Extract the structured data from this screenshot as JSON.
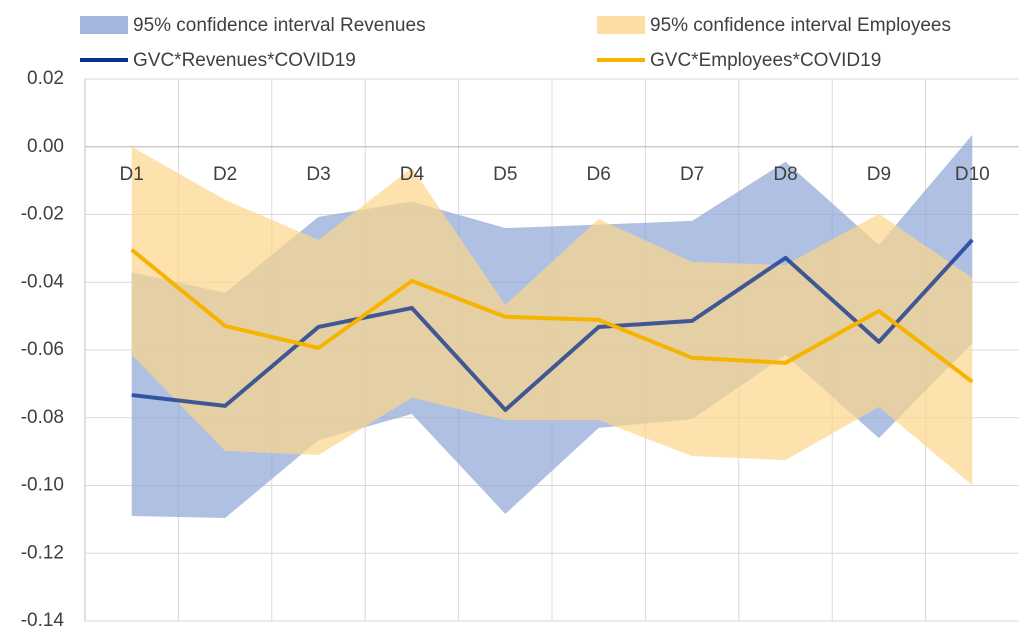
{
  "chart_data": {
    "type": "band-line",
    "categories": [
      "D1",
      "D2",
      "D3",
      "D4",
      "D5",
      "D6",
      "D7",
      "D8",
      "D9",
      "D10"
    ],
    "bands": [
      {
        "name": "95% confidence interval Revenues",
        "color": "#8fa5d6",
        "upper": [
          -0.037,
          -0.0431,
          -0.0207,
          -0.0162,
          -0.024,
          -0.023,
          -0.0219,
          -0.0044,
          -0.029,
          0.0035
        ],
        "lower": [
          -0.109,
          -0.1096,
          -0.0866,
          -0.0789,
          -0.1084,
          -0.083,
          -0.0804,
          -0.0615,
          -0.086,
          -0.058
        ]
      },
      {
        "name": "95% confidence interval Employees",
        "color": "#fcd58a",
        "upper": [
          0.0,
          -0.0157,
          -0.0275,
          -0.0062,
          -0.0467,
          -0.0213,
          -0.034,
          -0.0349,
          -0.0198,
          -0.0387
        ],
        "lower": [
          -0.0614,
          -0.0898,
          -0.091,
          -0.0741,
          -0.0807,
          -0.0807,
          -0.0913,
          -0.0925,
          -0.0768,
          -0.0999
        ]
      }
    ],
    "series": [
      {
        "name": "GVC*Revenues*COVID19",
        "color": "#0a2f8f",
        "values": [
          -0.0733,
          -0.0765,
          -0.0532,
          -0.0476,
          -0.0777,
          -0.0532,
          -0.0514,
          -0.0328,
          -0.0576,
          -0.0275
        ]
      },
      {
        "name": "GVC*Employees*COVID19",
        "color": "#f5b400",
        "values": [
          -0.0304,
          -0.0529,
          -0.0594,
          -0.0396,
          -0.0502,
          -0.0511,
          -0.0623,
          -0.0638,
          -0.0485,
          -0.0694
        ]
      }
    ],
    "ylim": [
      -0.14,
      0.02
    ],
    "yticks": [
      0.02,
      {
        "value": 0,
        "label": "0.00"
      },
      -0.02,
      -0.04,
      -0.06,
      -0.08,
      {
        "value": -0.1,
        "label": "-0.10"
      },
      -0.12,
      -0.14
    ],
    "grid": true
  }
}
